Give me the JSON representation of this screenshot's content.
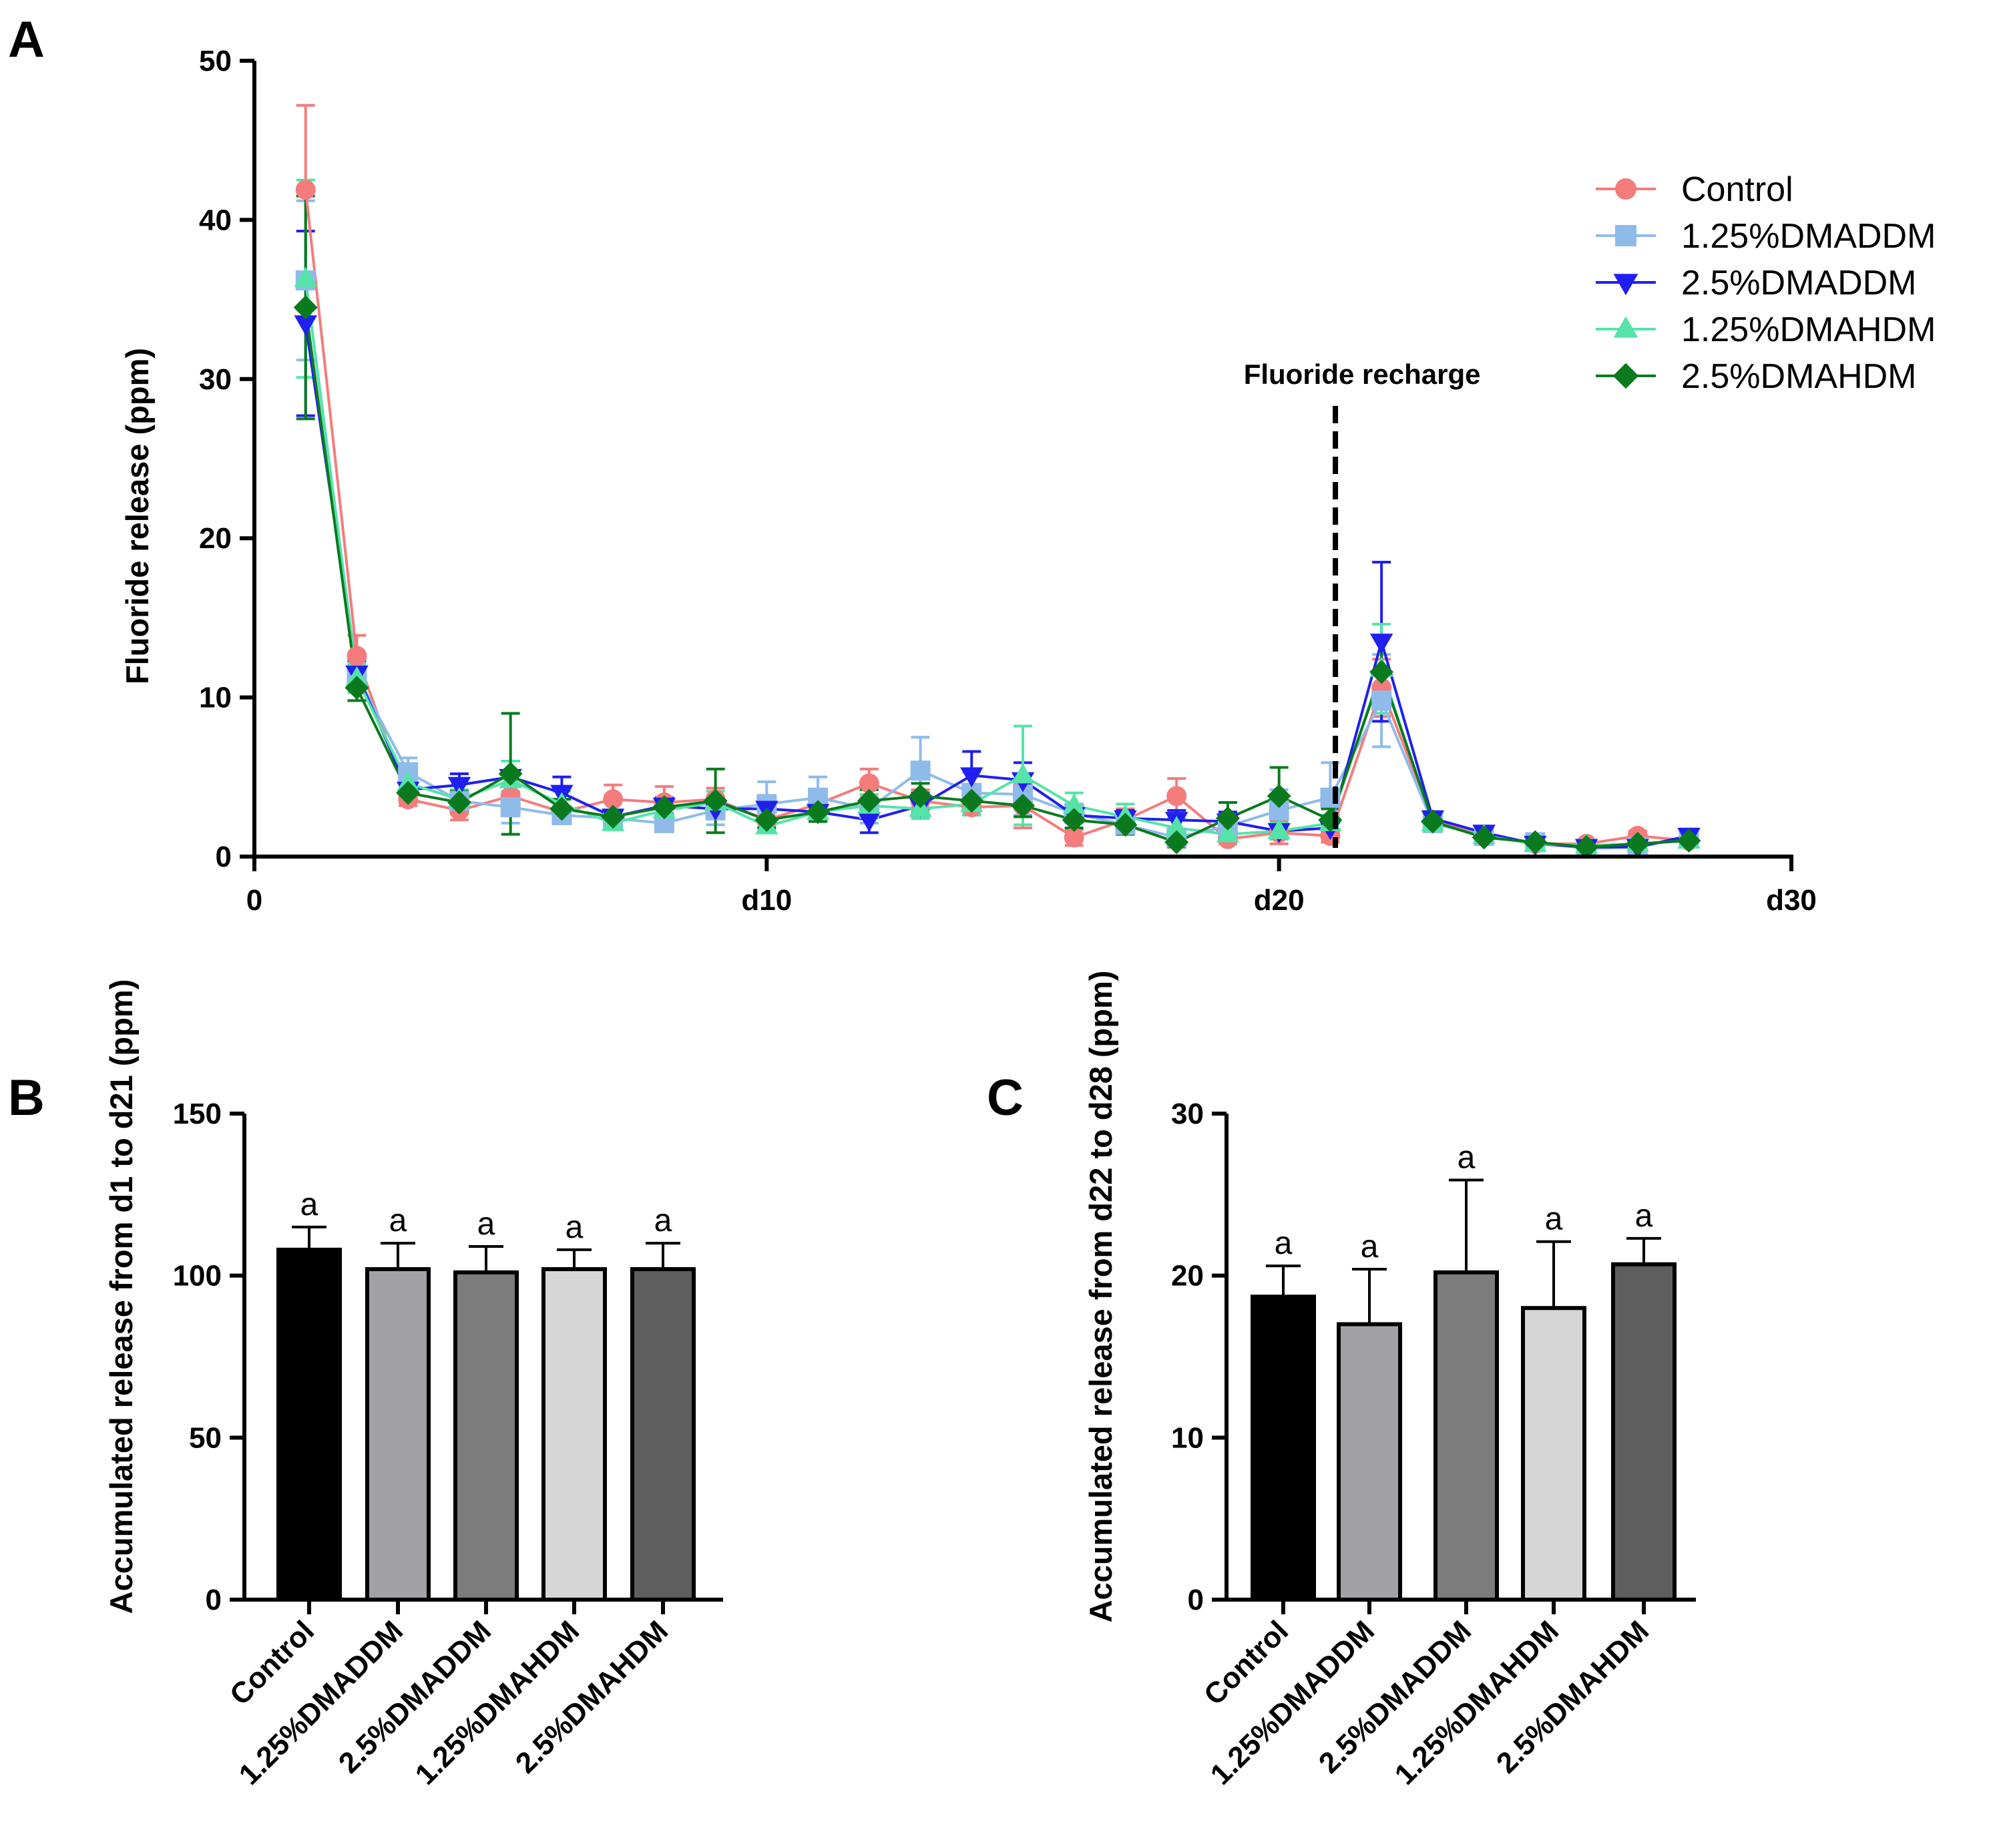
{
  "chart_data": [
    {
      "panel": "A",
      "type": "line",
      "ylabel": "Fluoride release (ppm)",
      "xlabel": "",
      "xlim": [
        0,
        30
      ],
      "ylim": [
        0,
        50
      ],
      "xticks": [
        0,
        10,
        20,
        30
      ],
      "xtick_labels": [
        "0",
        "d10",
        "d20",
        "d30"
      ],
      "yticks": [
        0,
        10,
        20,
        30,
        40,
        50
      ],
      "annotation": {
        "text": "Fluoride recharge",
        "x": 21.1
      },
      "x": [
        1,
        2,
        3,
        4,
        5,
        6,
        7,
        8,
        9,
        10,
        11,
        12,
        13,
        14,
        15,
        16,
        17,
        18,
        19,
        20,
        21,
        22,
        23,
        24,
        25,
        26,
        27,
        28
      ],
      "series": [
        {
          "name": "Control",
          "color": "#f47c7c",
          "marker": "circle",
          "values": [
            41.9,
            12.6,
            3.6,
            2.9,
            3.8,
            2.8,
            3.6,
            3.4,
            3.6,
            2.3,
            3.3,
            4.6,
            3.5,
            3.1,
            3.2,
            1.2,
            2.3,
            3.8,
            1.1,
            1.5,
            1.3,
            10.6,
            2.3,
            1.3,
            0.8,
            0.8,
            1.3,
            1.0
          ],
          "errors": [
            5.3,
            1.3,
            0.4,
            0.6,
            0.8,
            0.3,
            0.9,
            1.0,
            0.7,
            0.5,
            0.6,
            0.9,
            0.7,
            0.5,
            1.4,
            0.5,
            0.7,
            1.1,
            0.3,
            0.7,
            0.4,
            1.8,
            0.3,
            0.2,
            0.2,
            0.2,
            0.3,
            0.2
          ]
        },
        {
          "name": "1.25%DMADDM",
          "color": "#8fbbea",
          "marker": "square",
          "values": [
            36.2,
            11.4,
            5.3,
            3.5,
            3.1,
            2.6,
            2.4,
            2.1,
            2.9,
            3.3,
            3.7,
            3.0,
            5.4,
            4.0,
            3.9,
            2.7,
            2.0,
            1.2,
            1.9,
            2.9,
            3.7,
            9.8,
            2.1,
            1.3,
            0.9,
            0.5,
            0.6,
            1.2
          ],
          "errors": [
            5.0,
            0.9,
            0.9,
            0.7,
            1.0,
            0.4,
            0.5,
            0.4,
            0.9,
            1.4,
            1.3,
            0.9,
            2.1,
            1.3,
            1.3,
            0.6,
            0.6,
            0.4,
            0.5,
            1.3,
            2.2,
            2.9,
            0.3,
            0.2,
            0.2,
            0.2,
            0.2,
            0.3
          ]
        },
        {
          "name": "2.5%DMADDM",
          "color": "#1f1ff0",
          "marker": "triangle-down",
          "values": [
            33.5,
            11.5,
            4.2,
            4.5,
            5.0,
            4.0,
            2.5,
            3.2,
            3.0,
            3.0,
            2.8,
            2.3,
            3.2,
            5.1,
            4.8,
            2.6,
            2.4,
            2.3,
            2.2,
            1.6,
            1.8,
            13.5,
            2.4,
            1.5,
            0.8,
            0.6,
            0.6,
            1.3
          ],
          "errors": [
            5.8,
            0.8,
            0.5,
            0.7,
            1.0,
            1.0,
            0.4,
            0.5,
            0.5,
            0.6,
            0.6,
            0.8,
            0.8,
            1.5,
            1.1,
            0.4,
            0.5,
            0.6,
            0.6,
            0.5,
            0.5,
            5.0,
            0.3,
            0.3,
            0.2,
            0.2,
            0.3,
            0.4
          ]
        },
        {
          "name": "1.25%DMAHDM",
          "color": "#55e3aa",
          "marker": "triangle-up",
          "values": [
            36.3,
            11.2,
            4.6,
            3.6,
            4.8,
            3.3,
            2.1,
            2.9,
            3.4,
            1.9,
            2.8,
            3.2,
            3.0,
            3.3,
            5.1,
            3.2,
            2.5,
            1.8,
            1.4,
            1.6,
            2.1,
            11.8,
            2.1,
            1.3,
            0.8,
            0.7,
            0.8,
            1.0
          ],
          "errors": [
            6.2,
            0.9,
            0.8,
            0.6,
            1.2,
            0.8,
            0.4,
            0.6,
            0.7,
            0.4,
            0.6,
            0.7,
            0.6,
            0.7,
            3.1,
            0.8,
            0.8,
            0.6,
            0.4,
            0.5,
            0.5,
            2.8,
            0.3,
            0.2,
            0.2,
            0.2,
            0.2,
            0.2
          ]
        },
        {
          "name": "2.5%DMAHDM",
          "color": "#0b7a1e",
          "marker": "diamond",
          "values": [
            34.5,
            10.6,
            4.0,
            3.4,
            5.2,
            3.0,
            2.5,
            3.1,
            3.5,
            2.3,
            2.8,
            3.5,
            3.8,
            3.5,
            3.2,
            2.3,
            2.0,
            0.9,
            2.4,
            3.8,
            2.3,
            11.6,
            2.2,
            1.2,
            0.9,
            0.6,
            0.8,
            1.0
          ],
          "errors": [
            7.0,
            0.8,
            0.6,
            0.7,
            3.8,
            0.6,
            0.4,
            0.5,
            2.0,
            0.5,
            0.6,
            0.7,
            0.8,
            0.6,
            0.7,
            0.5,
            0.6,
            0.3,
            1.0,
            1.8,
            0.7,
            2.3,
            0.3,
            0.2,
            0.2,
            0.2,
            0.2,
            0.2
          ]
        }
      ]
    },
    {
      "panel": "B",
      "type": "bar",
      "ylabel": "Accumulated release from d1 to d21 (ppm)",
      "categories": [
        "Control",
        "1.25%DMADDM",
        "2.5%DMADDM",
        "1.25%DMAHDM",
        "2.5%DMAHDM"
      ],
      "values": [
        108,
        102,
        101,
        102,
        102
      ],
      "errors": [
        7,
        8,
        8,
        6,
        8
      ],
      "significance": [
        "a",
        "a",
        "a",
        "a",
        "a"
      ],
      "colors": [
        "#000000",
        "#a2a2a6",
        "#7c7c7c",
        "#d6d6d6",
        "#5e5e5e"
      ],
      "ylim": [
        0,
        150
      ],
      "yticks": [
        0,
        50,
        100,
        150
      ]
    },
    {
      "panel": "C",
      "type": "bar",
      "ylabel": "Accumulated release from d22 to d28 (ppm)",
      "categories": [
        "Control",
        "1.25%DMADDM",
        "2.5%DMADDM",
        "1.25%DMAHDM",
        "2.5%DMAHDM"
      ],
      "values": [
        18.7,
        17.0,
        20.2,
        18.0,
        20.7
      ],
      "errors": [
        1.9,
        3.4,
        5.7,
        4.1,
        1.6
      ],
      "significance": [
        "a",
        "a",
        "a",
        "a",
        "a"
      ],
      "colors": [
        "#000000",
        "#a2a2a6",
        "#7c7c7c",
        "#d6d6d6",
        "#5e5e5e"
      ],
      "ylim": [
        0,
        30
      ],
      "yticks": [
        0,
        10,
        20,
        30
      ]
    }
  ]
}
